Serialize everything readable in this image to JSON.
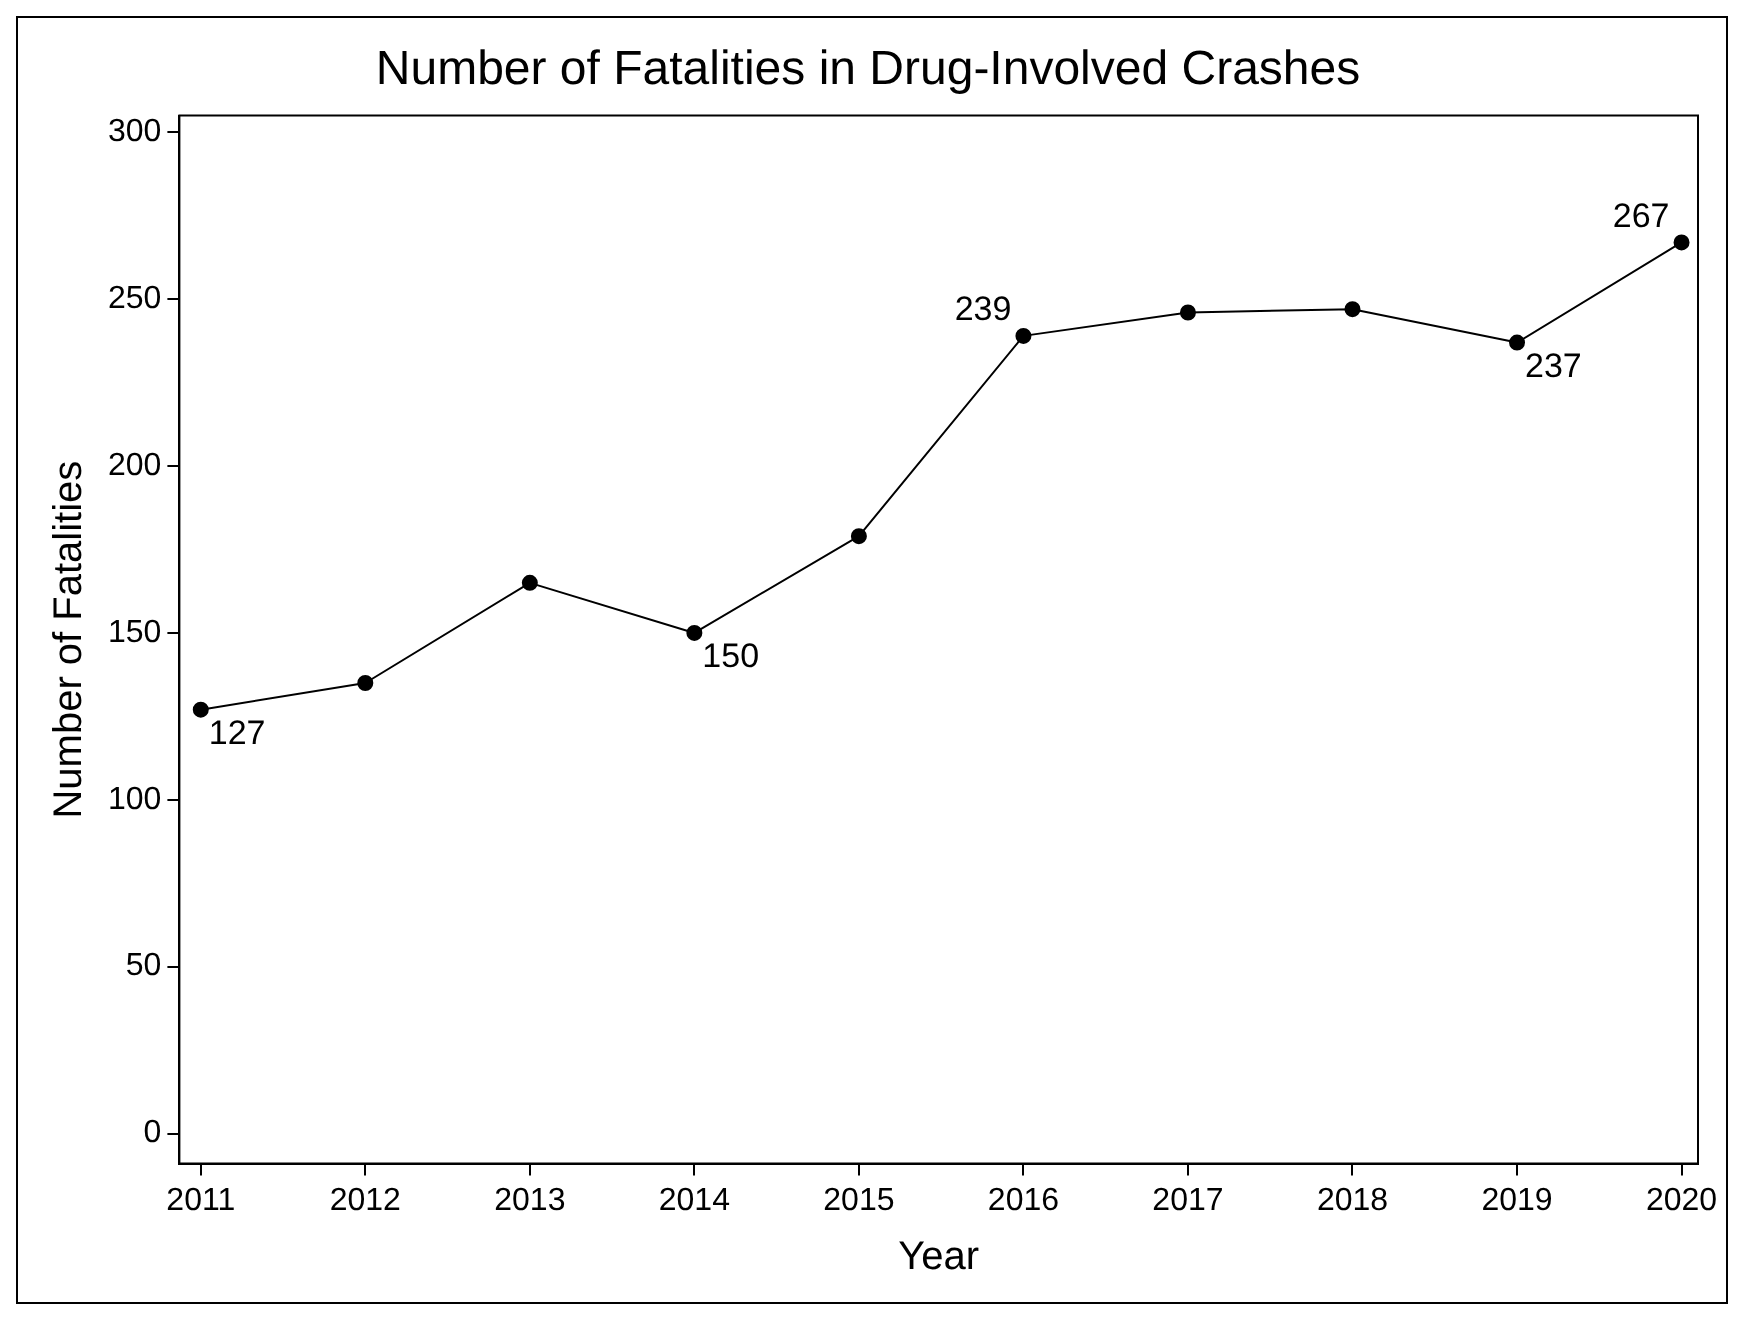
{
  "chart_data": {
    "type": "line",
    "title": "Number of Fatalities in Drug-Involved Crashes",
    "xlabel": "Year",
    "ylabel": "Number of Fatalities",
    "x": [
      2011,
      2012,
      2013,
      2014,
      2015,
      2016,
      2017,
      2018,
      2019,
      2020
    ],
    "series": [
      {
        "color": "#000000",
        "values": [
          127,
          135,
          165,
          150,
          179,
          239,
          246,
          247,
          237,
          267
        ],
        "value_labels": [
          "127",
          null,
          null,
          "150",
          null,
          "239",
          null,
          null,
          "237",
          "267"
        ]
      }
    ],
    "xlim": [
      2010.87,
      2020.1
    ],
    "xticks": [
      2011,
      2012,
      2013,
      2014,
      2015,
      2016,
      2017,
      2018,
      2019,
      2020
    ],
    "ylim": [
      -9,
      305
    ],
    "yticks": [
      0,
      50,
      100,
      150,
      200,
      250,
      300
    ],
    "grid": false,
    "legend": false,
    "marker": "circle",
    "line_style": "solid"
  }
}
